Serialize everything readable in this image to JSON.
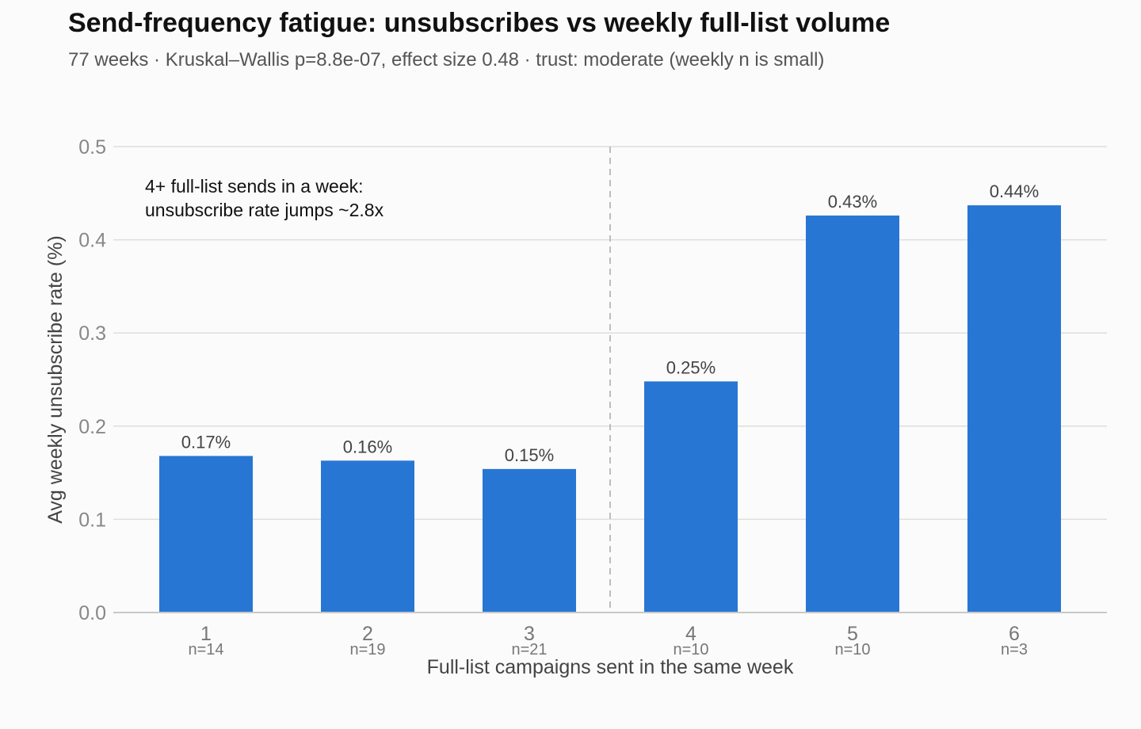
{
  "chart_data": {
    "type": "bar",
    "title": "Send-frequency fatigue: unsubscribes vs weekly full-list volume",
    "subtitle": "77 weeks · Kruskal–Wallis p=8.8e-07, effect size 0.48 · trust: moderate (weekly n is small)",
    "xlabel": "Full-list campaigns sent in the same week",
    "ylabel": "Avg weekly unsubscribe rate (%)",
    "categories": [
      "1",
      "2",
      "3",
      "4",
      "5",
      "6"
    ],
    "n_labels": [
      "n=14",
      "n=19",
      "n=21",
      "n=10",
      "n=10",
      "n=3"
    ],
    "values": [
      0.168,
      0.163,
      0.154,
      0.248,
      0.426,
      0.437
    ],
    "value_labels": [
      "0.17%",
      "0.16%",
      "0.15%",
      "0.25%",
      "0.43%",
      "0.44%"
    ],
    "ylim": [
      0,
      0.5
    ],
    "yticks": [
      0.0,
      0.1,
      0.2,
      0.3,
      0.4,
      0.5
    ],
    "ytick_labels": [
      "0.0",
      "0.1",
      "0.2",
      "0.3",
      "0.4",
      "0.5"
    ],
    "threshold_between": [
      3,
      4
    ],
    "annotation": [
      "4+ full-list sends in a week:",
      "unsubscribe rate jumps ~2.8x"
    ],
    "bar_color": "#2876d4",
    "grid": true,
    "legend": "none"
  }
}
